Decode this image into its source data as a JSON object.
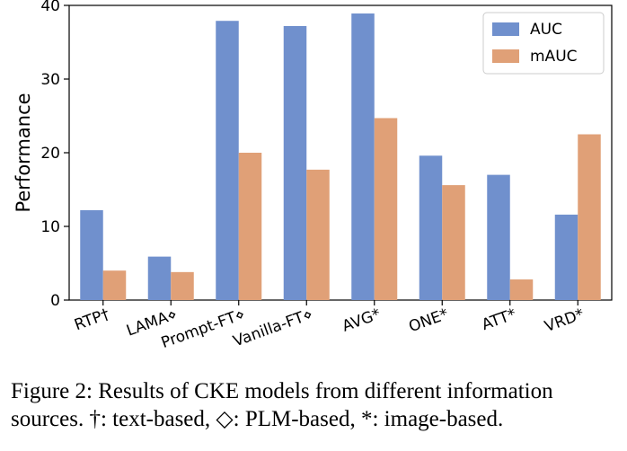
{
  "chart_data": {
    "type": "bar",
    "title": "",
    "xlabel": "",
    "ylabel": "Performance",
    "ylim": [
      0,
      40
    ],
    "yticks": [
      "0",
      "10",
      "20",
      "30",
      "40"
    ],
    "categories": [
      "RTP†",
      "LAMA⋄",
      "Prompt-FT⋄",
      "Vanilla-FT⋄",
      "AVG*",
      "ONE*",
      "ATT*",
      "VRD*"
    ],
    "series": [
      {
        "name": "AUC",
        "color": "#7090cd",
        "values": [
          12.2,
          5.9,
          37.9,
          37.2,
          38.9,
          19.6,
          17.0,
          11.6
        ]
      },
      {
        "name": "mAUC",
        "color": "#e0a077",
        "values": [
          4.0,
          3.8,
          20.0,
          17.7,
          24.7,
          15.6,
          2.8,
          22.5
        ]
      }
    ],
    "grid": false,
    "legend": "top-right"
  },
  "caption": "Figure 2: Results of CKE models from different information sources. †: text-based, ◇: PLM-based, *: image-based."
}
